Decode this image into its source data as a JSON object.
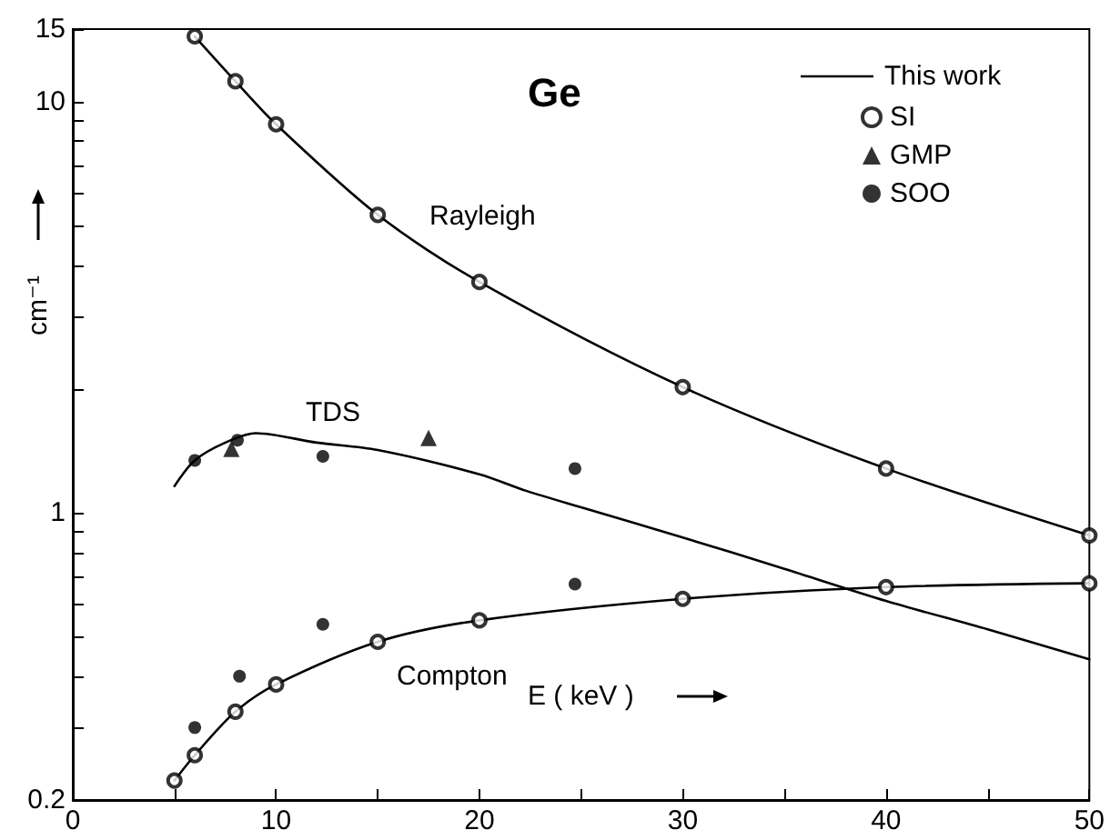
{
  "chart_data": {
    "type": "scatter",
    "title": "Ge",
    "xlabel": "E ( keV )",
    "ylabel": "cm⁻¹",
    "xlim": [
      0,
      50
    ],
    "xticks": [
      0,
      {
        "value": 5,
        "label": null
      },
      10,
      {
        "value": 15,
        "label": null
      },
      20,
      {
        "value": 25,
        "label": null
      },
      30,
      {
        "value": 35,
        "label": null
      },
      40,
      {
        "value": 45,
        "label": null
      },
      50
    ],
    "ylim": [
      0.2,
      15
    ],
    "yticks": [
      0.2,
      {
        "value": 0.3,
        "label": null
      },
      {
        "value": 0.4,
        "label": null
      },
      {
        "value": 0.5,
        "label": null
      },
      {
        "value": 0.6,
        "label": null
      },
      {
        "value": 0.7,
        "label": null
      },
      {
        "value": 0.8,
        "label": null
      },
      {
        "value": 0.9,
        "label": null
      },
      1,
      {
        "value": 2,
        "label": null
      },
      {
        "value": 3,
        "label": null
      },
      {
        "value": 4,
        "label": null
      },
      {
        "value": 5,
        "label": null
      },
      {
        "value": 6,
        "label": null
      },
      {
        "value": 7,
        "label": null
      },
      {
        "value": 8,
        "label": null
      },
      {
        "value": 9,
        "label": null
      },
      10,
      15
    ],
    "log": "y",
    "grid": false,
    "legend": "top right",
    "legend_title": "This work",
    "series": [
      {
        "name": "Rayleigh",
        "type": "line",
        "marker": "none",
        "line_style": "solid",
        "color": "#000000",
        "x": [
          6,
          8,
          10,
          15,
          20,
          30,
          40,
          50
        ],
        "values": [
          14.4,
          11.2,
          8.8,
          5.3,
          3.64,
          2.02,
          1.28,
          0.88
        ]
      },
      {
        "name": "TDS",
        "type": "line",
        "marker": "none",
        "line_style": "solid",
        "color": "#000000",
        "x": [
          5,
          6,
          7.5,
          9,
          12,
          15,
          20,
          22.3,
          25,
          30,
          35,
          40,
          45,
          50
        ],
        "values": [
          1.16,
          1.34,
          1.48,
          1.56,
          1.48,
          1.42,
          1.24,
          1.13,
          1.03,
          0.87,
          0.73,
          0.61,
          0.52,
          0.44
        ]
      },
      {
        "name": "Compton",
        "type": "line",
        "marker": "none",
        "line_style": "solid",
        "color": "#000000",
        "x": [
          5,
          6,
          8,
          10,
          15,
          20,
          30,
          40,
          50
        ],
        "values": [
          0.223,
          0.257,
          0.328,
          0.382,
          0.485,
          0.547,
          0.617,
          0.659,
          0.673
        ]
      },
      {
        "name": "SI",
        "marker": "emptyCircle",
        "color": "#000000",
        "x": [
          6,
          8,
          10,
          15,
          20,
          30,
          40,
          50,
          5,
          6,
          8,
          10,
          15,
          20,
          30,
          40,
          50
        ],
        "values": [
          14.4,
          11.2,
          8.8,
          5.3,
          3.64,
          2.02,
          1.28,
          0.88,
          0.223,
          0.257,
          0.328,
          0.382,
          0.485,
          0.547,
          0.617,
          0.659,
          0.673
        ]
      },
      {
        "name": "GMP",
        "marker": "triangle",
        "color": "#000000",
        "x": [
          7.8,
          17.5
        ],
        "values": [
          1.43,
          1.52
        ]
      },
      {
        "name": "SOO",
        "marker": "circle",
        "color": "#000000",
        "x": [
          6,
          8.1,
          12.3,
          24.7,
          6,
          8.2,
          12.3,
          24.7
        ],
        "values": [
          1.34,
          1.5,
          1.37,
          1.28,
          0.3,
          0.4,
          0.535,
          0.67
        ]
      }
    ]
  }
}
